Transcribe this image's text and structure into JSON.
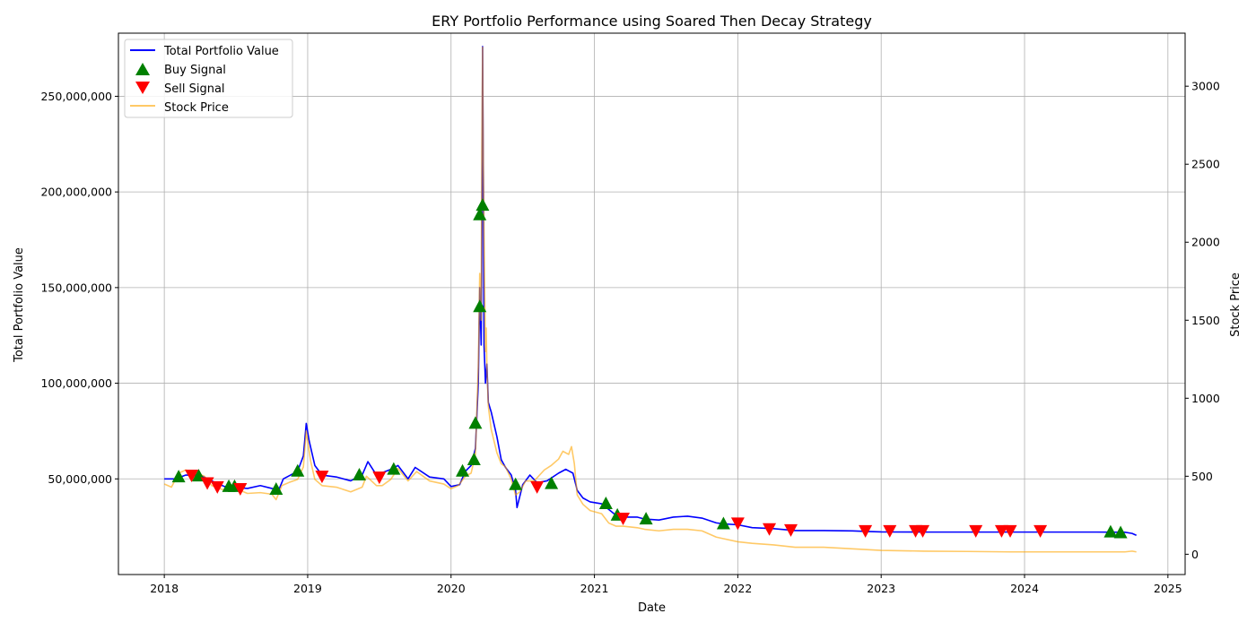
{
  "chart_data": {
    "type": "line",
    "title": "ERY Portfolio Performance using Soared Then Decay Strategy",
    "xlabel": "Date",
    "ylabel": "Total Portfolio Value",
    "ylabel_right": "Stock Price",
    "xlim": [
      2017.68,
      2025.12
    ],
    "ylim_left": [
      0,
      283000000
    ],
    "ylim_right": [
      -130,
      3340
    ],
    "x_ticks": [
      2018,
      2019,
      2020,
      2021,
      2022,
      2023,
      2024,
      2025
    ],
    "x_tick_labels": [
      "2018",
      "2019",
      "2020",
      "2021",
      "2022",
      "2023",
      "2024",
      "2025"
    ],
    "y_ticks_left": [
      50000000,
      100000000,
      150000000,
      200000000,
      250000000
    ],
    "y_tick_labels_left": [
      "50,000,000",
      "100,000,000",
      "150,000,000",
      "200,000,000",
      "250,000,000"
    ],
    "y_ticks_right": [
      0,
      500,
      1000,
      1500,
      2000,
      2500,
      3000
    ],
    "y_tick_labels_right": [
      "0",
      "500",
      "1000",
      "1500",
      "2000",
      "2500",
      "3000"
    ],
    "grid": true,
    "legend_position": "upper-left",
    "legend": {
      "portfolio": "Total Portfolio Value",
      "buy": "Buy Signal",
      "sell": "Sell Signal",
      "price": "Stock Price"
    },
    "colors": {
      "portfolio": "#0000ff",
      "price": "#ffa500",
      "buy": "#008000",
      "sell": "#ff0000",
      "grid": "#b0b0b0"
    },
    "series": [
      {
        "name": "Total Portfolio Value",
        "axis": "left",
        "points": [
          [
            2018.0,
            50000000
          ],
          [
            2018.08,
            50000000
          ],
          [
            2018.15,
            52000000
          ],
          [
            2018.25,
            52000000
          ],
          [
            2018.33,
            49000000
          ],
          [
            2018.42,
            46000000
          ],
          [
            2018.5,
            45500000
          ],
          [
            2018.58,
            45000000
          ],
          [
            2018.67,
            46500000
          ],
          [
            2018.75,
            45000000
          ],
          [
            2018.8,
            44500000
          ],
          [
            2018.83,
            50000000
          ],
          [
            2018.88,
            52000000
          ],
          [
            2018.93,
            54000000
          ],
          [
            2018.97,
            62000000
          ],
          [
            2018.99,
            79000000
          ],
          [
            2019.01,
            70000000
          ],
          [
            2019.05,
            57000000
          ],
          [
            2019.1,
            52000000
          ],
          [
            2019.2,
            51000000
          ],
          [
            2019.3,
            49000000
          ],
          [
            2019.38,
            52000000
          ],
          [
            2019.42,
            59000000
          ],
          [
            2019.48,
            52000000
          ],
          [
            2019.58,
            55000000
          ],
          [
            2019.63,
            57000000
          ],
          [
            2019.7,
            50000000
          ],
          [
            2019.75,
            56000000
          ],
          [
            2019.85,
            51000000
          ],
          [
            2019.95,
            50000000
          ],
          [
            2020.0,
            46000000
          ],
          [
            2020.06,
            47000000
          ],
          [
            2020.1,
            54000000
          ],
          [
            2020.14,
            57000000
          ],
          [
            2020.17,
            66000000
          ],
          [
            2020.19,
            100000000
          ],
          [
            2020.2,
            150000000
          ],
          [
            2020.21,
            120000000
          ],
          [
            2020.215,
            180000000
          ],
          [
            2020.22,
            276000000
          ],
          [
            2020.225,
            210000000
          ],
          [
            2020.23,
            120000000
          ],
          [
            2020.24,
            100000000
          ],
          [
            2020.25,
            110000000
          ],
          [
            2020.26,
            90000000
          ],
          [
            2020.28,
            85000000
          ],
          [
            2020.32,
            72000000
          ],
          [
            2020.35,
            60000000
          ],
          [
            2020.38,
            56000000
          ],
          [
            2020.42,
            52000000
          ],
          [
            2020.45,
            44000000
          ],
          [
            2020.46,
            35000000
          ],
          [
            2020.5,
            47000000
          ],
          [
            2020.55,
            52000000
          ],
          [
            2020.6,
            48000000
          ],
          [
            2020.67,
            49000000
          ],
          [
            2020.75,
            53000000
          ],
          [
            2020.8,
            55000000
          ],
          [
            2020.85,
            53000000
          ],
          [
            2020.88,
            44000000
          ],
          [
            2020.92,
            40000000
          ],
          [
            2020.97,
            38000000
          ],
          [
            2021.05,
            37000000
          ],
          [
            2021.1,
            34000000
          ],
          [
            2021.15,
            31000000
          ],
          [
            2021.2,
            30000000
          ],
          [
            2021.3,
            30000000
          ],
          [
            2021.35,
            29000000
          ],
          [
            2021.45,
            28500000
          ],
          [
            2021.55,
            30000000
          ],
          [
            2021.65,
            30500000
          ],
          [
            2021.75,
            29500000
          ],
          [
            2021.85,
            27000000
          ],
          [
            2021.9,
            26500000
          ],
          [
            2022.0,
            26000000
          ],
          [
            2022.1,
            24500000
          ],
          [
            2022.25,
            24000000
          ],
          [
            2022.4,
            23000000
          ],
          [
            2022.6,
            23000000
          ],
          [
            2022.8,
            22800000
          ],
          [
            2022.9,
            22500000
          ],
          [
            2023.0,
            22300000
          ],
          [
            2023.3,
            22200000
          ],
          [
            2023.6,
            22200000
          ],
          [
            2023.9,
            22200000
          ],
          [
            2024.2,
            22200000
          ],
          [
            2024.5,
            22200000
          ],
          [
            2024.7,
            22100000
          ],
          [
            2024.75,
            21500000
          ],
          [
            2024.78,
            20500000
          ]
        ]
      },
      {
        "name": "Stock Price",
        "axis": "right",
        "points": [
          [
            2018.0,
            450
          ],
          [
            2018.05,
            430
          ],
          [
            2018.1,
            520
          ],
          [
            2018.15,
            540
          ],
          [
            2018.2,
            530
          ],
          [
            2018.28,
            500
          ],
          [
            2018.33,
            440
          ],
          [
            2018.42,
            410
          ],
          [
            2018.5,
            420
          ],
          [
            2018.58,
            390
          ],
          [
            2018.67,
            395
          ],
          [
            2018.75,
            385
          ],
          [
            2018.78,
            350
          ],
          [
            2018.82,
            440
          ],
          [
            2018.87,
            460
          ],
          [
            2018.93,
            480
          ],
          [
            2018.97,
            560
          ],
          [
            2018.99,
            790
          ],
          [
            2019.02,
            600
          ],
          [
            2019.05,
            480
          ],
          [
            2019.1,
            440
          ],
          [
            2019.2,
            430
          ],
          [
            2019.3,
            400
          ],
          [
            2019.38,
            430
          ],
          [
            2019.41,
            500
          ],
          [
            2019.48,
            440
          ],
          [
            2019.52,
            440
          ],
          [
            2019.58,
            480
          ],
          [
            2019.63,
            550
          ],
          [
            2019.7,
            470
          ],
          [
            2019.76,
            530
          ],
          [
            2019.85,
            470
          ],
          [
            2019.95,
            450
          ],
          [
            2020.0,
            420
          ],
          [
            2020.05,
            440
          ],
          [
            2020.1,
            500
          ],
          [
            2020.14,
            520
          ],
          [
            2020.17,
            640
          ],
          [
            2020.19,
            1200
          ],
          [
            2020.2,
            1800
          ],
          [
            2020.21,
            1500
          ],
          [
            2020.215,
            2600
          ],
          [
            2020.22,
            3250
          ],
          [
            2020.225,
            2500
          ],
          [
            2020.23,
            2050
          ],
          [
            2020.24,
            1300
          ],
          [
            2020.245,
            1450
          ],
          [
            2020.25,
            1200
          ],
          [
            2020.26,
            950
          ],
          [
            2020.28,
            800
          ],
          [
            2020.32,
            650
          ],
          [
            2020.35,
            580
          ],
          [
            2020.38,
            560
          ],
          [
            2020.42,
            480
          ],
          [
            2020.45,
            380
          ],
          [
            2020.48,
            400
          ],
          [
            2020.52,
            470
          ],
          [
            2020.58,
            470
          ],
          [
            2020.65,
            540
          ],
          [
            2020.7,
            570
          ],
          [
            2020.75,
            610
          ],
          [
            2020.78,
            660
          ],
          [
            2020.82,
            640
          ],
          [
            2020.84,
            690
          ],
          [
            2020.86,
            580
          ],
          [
            2020.88,
            380
          ],
          [
            2020.92,
            320
          ],
          [
            2020.97,
            280
          ],
          [
            2021.05,
            260
          ],
          [
            2021.1,
            200
          ],
          [
            2021.15,
            180
          ],
          [
            2021.2,
            180
          ],
          [
            2021.3,
            170
          ],
          [
            2021.35,
            160
          ],
          [
            2021.45,
            150
          ],
          [
            2021.55,
            160
          ],
          [
            2021.65,
            160
          ],
          [
            2021.75,
            150
          ],
          [
            2021.85,
            110
          ],
          [
            2021.9,
            100
          ],
          [
            2022.0,
            80
          ],
          [
            2022.1,
            70
          ],
          [
            2022.25,
            60
          ],
          [
            2022.4,
            45
          ],
          [
            2022.6,
            45
          ],
          [
            2022.8,
            35
          ],
          [
            2022.9,
            30
          ],
          [
            2023.0,
            25
          ],
          [
            2023.3,
            20
          ],
          [
            2023.6,
            18
          ],
          [
            2023.9,
            15
          ],
          [
            2024.2,
            15
          ],
          [
            2024.5,
            15
          ],
          [
            2024.7,
            15
          ],
          [
            2024.75,
            20
          ],
          [
            2024.78,
            15
          ]
        ]
      }
    ],
    "buy_signals": [
      [
        2018.1,
        51000000
      ],
      [
        2018.24,
        51500000
      ],
      [
        2018.45,
        46000000
      ],
      [
        2018.49,
        46000000
      ],
      [
        2018.78,
        44500000
      ],
      [
        2018.93,
        54000000
      ],
      [
        2019.36,
        52000000
      ],
      [
        2019.6,
        55000000
      ],
      [
        2020.08,
        54000000
      ],
      [
        2020.16,
        60000000
      ],
      [
        2020.17,
        79000000
      ],
      [
        2020.2,
        140000000
      ],
      [
        2020.2,
        188000000
      ],
      [
        2020.22,
        193000000
      ],
      [
        2020.45,
        47000000
      ],
      [
        2020.7,
        47500000
      ],
      [
        2021.08,
        37000000
      ],
      [
        2021.16,
        31000000
      ],
      [
        2021.36,
        29000000
      ],
      [
        2021.9,
        26500000
      ],
      [
        2024.6,
        22200000
      ],
      [
        2024.67,
        21800000
      ]
    ],
    "sell_signals": [
      [
        2018.19,
        52000000
      ],
      [
        2018.3,
        48000000
      ],
      [
        2018.37,
        46000000
      ],
      [
        2018.53,
        45000000
      ],
      [
        2019.1,
        51500000
      ],
      [
        2019.5,
        51000000
      ],
      [
        2020.6,
        46000000
      ],
      [
        2021.2,
        29500000
      ],
      [
        2022.0,
        27000000
      ],
      [
        2022.22,
        24000000
      ],
      [
        2022.37,
        23500000
      ],
      [
        2022.89,
        23000000
      ],
      [
        2023.06,
        23000000
      ],
      [
        2023.24,
        23000000
      ],
      [
        2023.29,
        23000000
      ],
      [
        2023.66,
        23000000
      ],
      [
        2023.84,
        23000000
      ],
      [
        2023.9,
        23000000
      ],
      [
        2024.11,
        23000000
      ]
    ]
  }
}
